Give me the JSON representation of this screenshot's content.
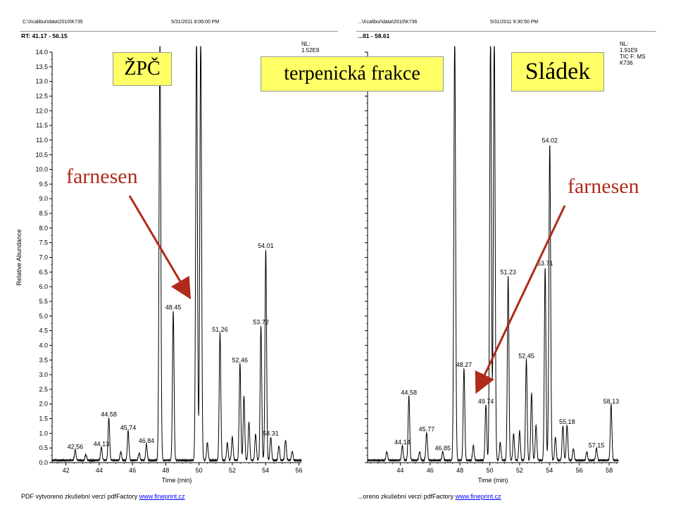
{
  "left_panel": {
    "file_path": "C:\\Xcalibur\\data\\2010\\K735",
    "datetime": "5/31/2011 8:06:00 PM",
    "rt_range": "RT: 41.17 - 56.15",
    "nl_label": "NL:",
    "nl_value": "1.52E9",
    "label_box": "ŽPČ",
    "arrow_label": "farnesen"
  },
  "right_panel": {
    "file_path": "...\\Xcalibur\\data\\2010\\K736",
    "datetime": "5/31/2011 9:30:50 PM",
    "rt_range": "...81 - 58.61",
    "nl_label": "NL:",
    "nl_value": "1.91E9",
    "scan_filter": "TIC F: MS",
    "sample": "K736",
    "label_box": "Sládek",
    "arrow_label": "farnesen"
  },
  "center_label": "terpenická frakce",
  "footer": {
    "left_text": "PDF vytvoreno zkušební verzí pdfFactory",
    "left_link": "www.fineprint.cz",
    "right_text": "...oreno zkušební verzí pdfFactory",
    "right_link": "www.fineprint.cz"
  },
  "colors": {
    "label_box_fill": "#ffff66",
    "arrow_and_label": "#b02a1a",
    "trace": "#000000",
    "footer_link": "#0000ff"
  },
  "chart_data": [
    {
      "type": "line",
      "title": "",
      "xlabel": "Time (min)",
      "ylabel": "Relative Abundance",
      "xlim": [
        41.17,
        56.15
      ],
      "ylim": [
        0,
        14
      ],
      "x_ticks": [
        42,
        44,
        46,
        48,
        50,
        52,
        54,
        56
      ],
      "y_ticks": [
        0.0,
        0.5,
        1.0,
        1.5,
        2.0,
        2.5,
        3.0,
        3.5,
        4.0,
        4.5,
        5.0,
        5.5,
        6.0,
        6.5,
        7.0,
        7.5,
        8.0,
        8.5,
        9.0,
        9.5,
        10.0,
        10.5,
        11.0,
        11.5,
        12.0,
        12.5,
        13.0,
        13.5,
        14.0
      ],
      "baseline": 0.05,
      "peaks": [
        {
          "x": 42.56,
          "y": 0.35,
          "label": "42.56"
        },
        {
          "x": 43.2,
          "y": 0.2,
          "label": ""
        },
        {
          "x": 44.13,
          "y": 0.45,
          "label": "44.13"
        },
        {
          "x": 44.58,
          "y": 1.45,
          "label": "44.58"
        },
        {
          "x": 45.3,
          "y": 0.3,
          "label": ""
        },
        {
          "x": 45.74,
          "y": 1.0,
          "label": "45.74"
        },
        {
          "x": 46.4,
          "y": 0.25,
          "label": ""
        },
        {
          "x": 46.84,
          "y": 0.55,
          "label": "46.84"
        },
        {
          "x": 47.65,
          "y": 14.5,
          "label": ""
        },
        {
          "x": 48.45,
          "y": 5.1,
          "label": "48.45"
        },
        {
          "x": 49.85,
          "y": 14.5,
          "label": ""
        },
        {
          "x": 50.1,
          "y": 14.5,
          "label": ""
        },
        {
          "x": 50.5,
          "y": 0.6,
          "label": ""
        },
        {
          "x": 51.26,
          "y": 4.35,
          "label": "51.26"
        },
        {
          "x": 51.7,
          "y": 0.6,
          "label": ""
        },
        {
          "x": 52.0,
          "y": 0.8,
          "label": ""
        },
        {
          "x": 52.46,
          "y": 3.3,
          "label": "52.46"
        },
        {
          "x": 52.7,
          "y": 2.2,
          "label": ""
        },
        {
          "x": 53.0,
          "y": 1.3,
          "label": ""
        },
        {
          "x": 53.4,
          "y": 0.9,
          "label": ""
        },
        {
          "x": 53.72,
          "y": 4.6,
          "label": "53.72"
        },
        {
          "x": 54.01,
          "y": 7.2,
          "label": "54.01"
        },
        {
          "x": 54.31,
          "y": 0.8,
          "label": "54.31"
        },
        {
          "x": 54.8,
          "y": 0.5,
          "label": ""
        },
        {
          "x": 55.2,
          "y": 0.7,
          "label": ""
        },
        {
          "x": 55.6,
          "y": 0.3,
          "label": ""
        }
      ]
    },
    {
      "type": "line",
      "title": "",
      "xlabel": "Time (min)",
      "ylabel": "",
      "xlim": [
        41.81,
        58.61
      ],
      "ylim": [
        0,
        14
      ],
      "x_ticks": [
        44,
        46,
        48,
        50,
        52,
        54,
        56,
        58
      ],
      "y_ticks": [
        0.0,
        0.5,
        1.0,
        1.5,
        2.0,
        2.5,
        3.0,
        3.5,
        4.0,
        4.5,
        5.0,
        5.5,
        6.0,
        6.5,
        7.0,
        7.5,
        8.0,
        8.5,
        9.0,
        9.5,
        10.0,
        10.5,
        11.0,
        11.5,
        12.0,
        12.5,
        13.0,
        13.5,
        14.0
      ],
      "baseline": 0.05,
      "peaks": [
        {
          "x": 43.1,
          "y": 0.3,
          "label": ""
        },
        {
          "x": 44.14,
          "y": 0.5,
          "label": "44.14"
        },
        {
          "x": 44.58,
          "y": 2.2,
          "label": "44.58"
        },
        {
          "x": 45.3,
          "y": 0.3,
          "label": ""
        },
        {
          "x": 45.77,
          "y": 0.95,
          "label": "45.77"
        },
        {
          "x": 46.85,
          "y": 0.3,
          "label": "46.85"
        },
        {
          "x": 47.65,
          "y": 14.5,
          "label": ""
        },
        {
          "x": 48.27,
          "y": 3.15,
          "label": "48.27"
        },
        {
          "x": 48.9,
          "y": 0.5,
          "label": ""
        },
        {
          "x": 49.74,
          "y": 1.9,
          "label": "49.74"
        },
        {
          "x": 50.05,
          "y": 14.5,
          "label": ""
        },
        {
          "x": 50.3,
          "y": 14.5,
          "label": ""
        },
        {
          "x": 50.7,
          "y": 0.6,
          "label": ""
        },
        {
          "x": 51.23,
          "y": 6.3,
          "label": "51.23"
        },
        {
          "x": 51.6,
          "y": 0.9,
          "label": ""
        },
        {
          "x": 52.0,
          "y": 1.0,
          "label": ""
        },
        {
          "x": 52.45,
          "y": 3.45,
          "label": "52.45"
        },
        {
          "x": 52.8,
          "y": 2.3,
          "label": ""
        },
        {
          "x": 53.1,
          "y": 1.2,
          "label": ""
        },
        {
          "x": 53.71,
          "y": 6.6,
          "label": "53.71"
        },
        {
          "x": 54.02,
          "y": 10.8,
          "label": "54.02"
        },
        {
          "x": 54.4,
          "y": 0.8,
          "label": ""
        },
        {
          "x": 54.9,
          "y": 1.2,
          "label": ""
        },
        {
          "x": 55.18,
          "y": 1.2,
          "label": "55.18"
        },
        {
          "x": 55.6,
          "y": 0.4,
          "label": ""
        },
        {
          "x": 56.5,
          "y": 0.3,
          "label": ""
        },
        {
          "x": 57.15,
          "y": 0.4,
          "label": "57.15"
        },
        {
          "x": 58.13,
          "y": 1.9,
          "label": "58.13"
        }
      ]
    }
  ]
}
